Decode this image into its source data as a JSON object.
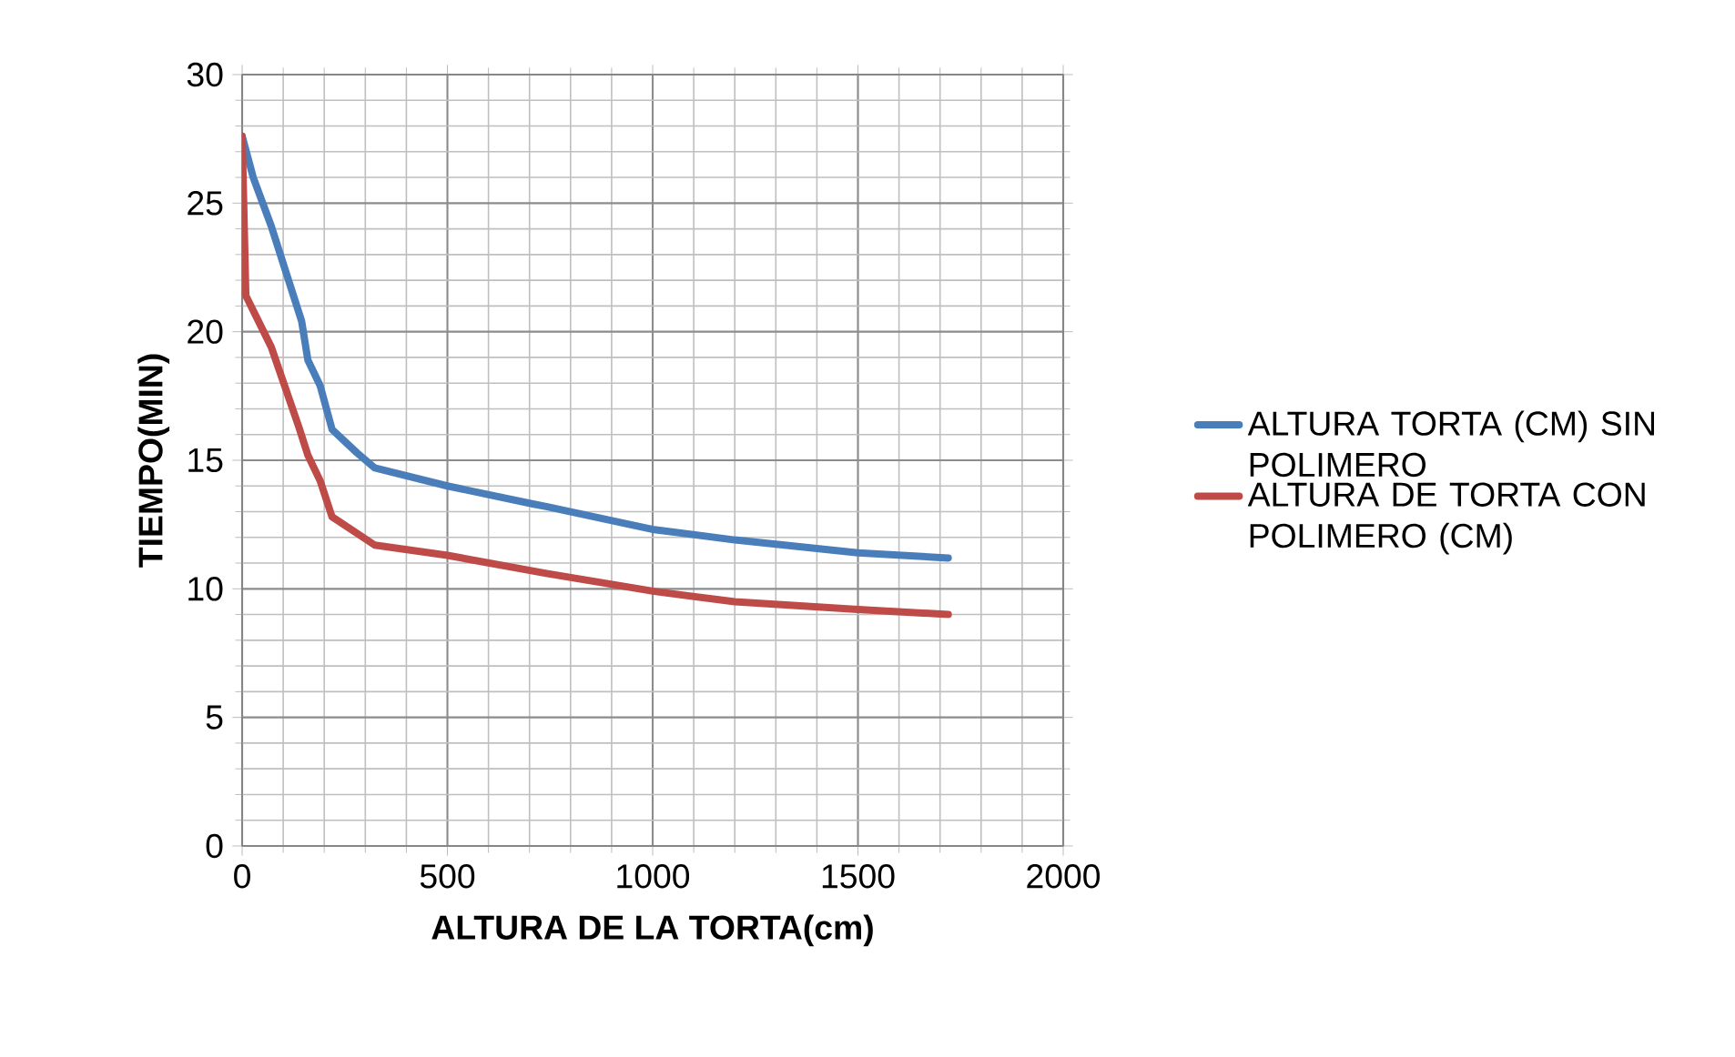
{
  "chart_data": {
    "type": "line",
    "xlabel": "ALTURA DE LA TORTA(cm)",
    "ylabel": "TIEMPO(MIN)",
    "xlim": [
      0,
      2000
    ],
    "xticks": [
      0,
      500,
      1000,
      1500,
      2000
    ],
    "ylim": [
      0,
      30
    ],
    "yticks": [
      0,
      5,
      10,
      15,
      20,
      25,
      30
    ],
    "grid": true,
    "legend": "right",
    "marker": "none",
    "line_style": "solid",
    "series": [
      {
        "name": "ALTURA TORTA (CM) SIN POLIMERO",
        "color": "#4a7ebb",
        "x": [
          0,
          27,
          71,
          145,
          160,
          190,
          219,
          279,
          323,
          500,
          708,
          741,
          1004,
          1200,
          1500,
          1720
        ],
        "values": [
          27.6,
          26.0,
          24.1,
          20.4,
          18.9,
          17.9,
          16.2,
          15.3,
          14.7,
          14.0,
          13.3,
          13.2,
          12.3,
          11.9,
          11.4,
          11.2
        ]
      },
      {
        "name": "ALTURA DE TORTA CON POLIMERO (CM)",
        "color": "#be4b48",
        "x": [
          0,
          9,
          71,
          138,
          160,
          190,
          219,
          323,
          500,
          741,
          1004,
          1200,
          1500,
          1720
        ],
        "values": [
          27.6,
          21.4,
          19.4,
          16.3,
          15.2,
          14.2,
          12.8,
          11.7,
          11.3,
          10.6,
          9.9,
          9.5,
          9.2,
          9.0
        ]
      }
    ]
  }
}
